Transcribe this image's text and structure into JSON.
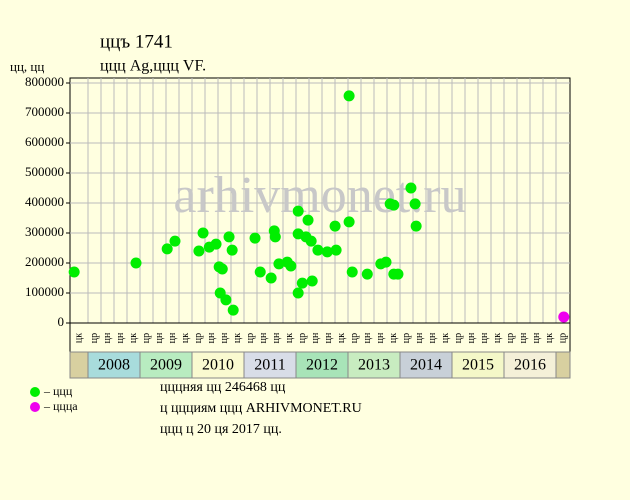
{
  "chart_data": {
    "type": "scatter",
    "title": "ццъ 1741",
    "subtitle": "ццц Ag,ццц VF.",
    "y_label": "цц, цц",
    "watermark": "arhivmonet.ru",
    "ylim": [
      0,
      800000
    ],
    "yticks": [
      0,
      100000,
      200000,
      300000,
      400000,
      500000,
      600000,
      700000,
      800000
    ],
    "xlim": [
      2007.65,
      2017.27
    ],
    "grid": true,
    "column_labels": [
      "цк",
      "цр",
      "цн",
      "цн",
      "цк",
      "цр",
      "цн",
      "цн",
      "цк",
      "цр",
      "цн",
      "цн",
      "цк",
      "цр",
      "цн",
      "цн",
      "цк",
      "цр",
      "цн",
      "цн",
      "цк",
      "цр",
      "цн",
      "цн",
      "цк",
      "цр",
      "цн",
      "цн",
      "цк",
      "цр",
      "цн",
      "цн",
      "цк",
      "цр",
      "цн",
      "цн",
      "цк",
      "цр"
    ],
    "year_bands": [
      "2008",
      "2009",
      "2010",
      "2011",
      "2012",
      "2013",
      "2014",
      "2015",
      "2016"
    ],
    "year_band_colors": [
      "#a8dcdc",
      "#b8ecc0",
      "#fafad0",
      "#d8dde8",
      "#a8e4b8",
      "#c8ecc0",
      "#c8d0d8",
      "#f4f8c8",
      "#f4f0d8"
    ],
    "series": [
      {
        "name": "– ццц",
        "color": "#00ee00",
        "x": [
          2007.73,
          2008.92,
          2009.52,
          2009.67,
          2010.13,
          2010.21,
          2010.33,
          2010.46,
          2010.52,
          2010.58,
          2010.54,
          2010.65,
          2010.71,
          2010.77,
          2010.79,
          2011.21,
          2011.31,
          2011.52,
          2011.58,
          2011.6,
          2011.67,
          2011.83,
          2011.9,
          2012.04,
          2012.04,
          2012.04,
          2012.12,
          2012.19,
          2012.23,
          2012.29,
          2012.31,
          2012.42,
          2012.6,
          2012.75,
          2012.77,
          2013.02,
          2013.02,
          2013.08,
          2013.37,
          2013.63,
          2013.73,
          2013.81,
          2013.88,
          2013.88,
          2013.96,
          2014.21,
          2014.29,
          2014.31
        ],
        "values": [
          170000,
          200000,
          247000,
          273000,
          240000,
          300000,
          253000,
          263000,
          187000,
          180000,
          100000,
          77000,
          287000,
          243000,
          43000,
          283000,
          170000,
          150000,
          307000,
          287000,
          197000,
          203000,
          190000,
          373000,
          297000,
          100000,
          133000,
          287000,
          343000,
          273000,
          140000,
          243000,
          237000,
          323000,
          243000,
          757000,
          337000,
          170000,
          163000,
          197000,
          203000,
          397000,
          393000,
          163000,
          163000,
          450000,
          397000,
          323000
        ]
      },
      {
        "name": "– ццца",
        "color": "#ee00ee",
        "x": [
          2017.15
        ],
        "values": [
          20000
        ]
      }
    ],
    "footer": [
      "цццняя цц 246468 цц",
      "ц ццциям ццц ARHIVMONET.RU",
      "ццц ц 20 ця 2017 цц."
    ]
  }
}
